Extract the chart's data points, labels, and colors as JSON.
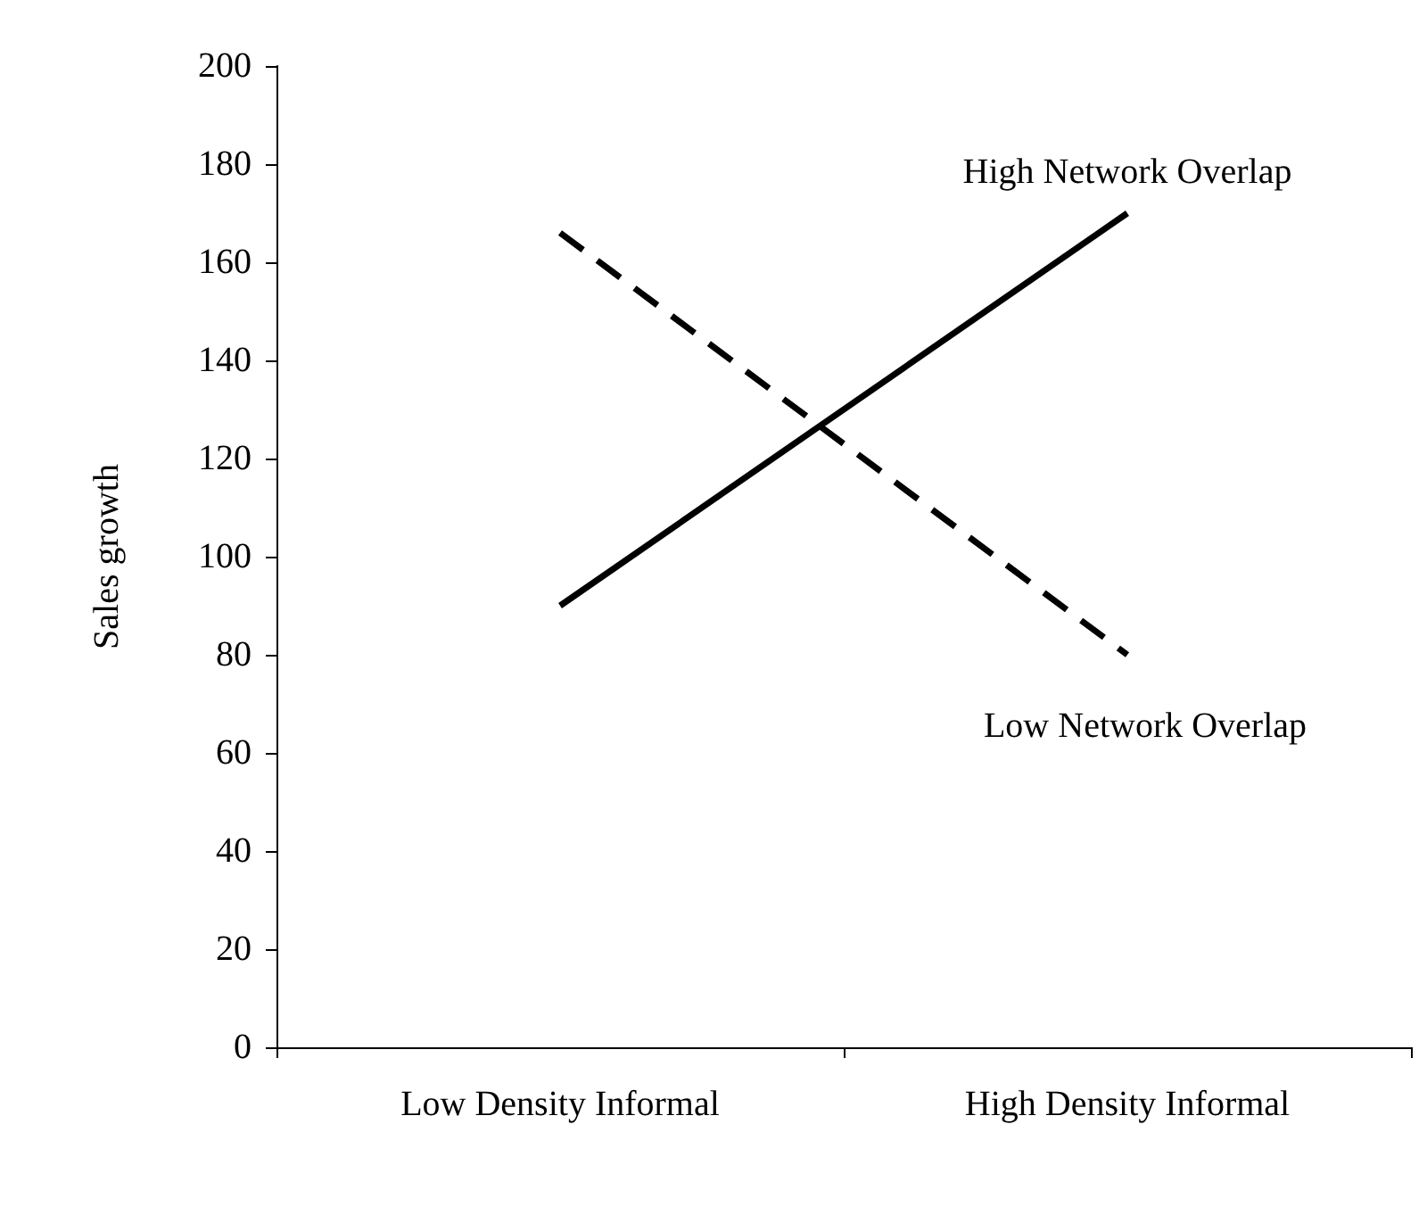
{
  "chart_data": {
    "type": "line",
    "ylabel": "Sales growth",
    "categories": [
      "Low Density Informal",
      "High Density Informal"
    ],
    "series": [
      {
        "name": "High Network Overlap",
        "color": "#000000",
        "line_style": "solid",
        "values": [
          90,
          170
        ]
      },
      {
        "name": "Low Network Overlap",
        "color": "#000000",
        "line_style": "dashed",
        "values": [
          166,
          80
        ]
      }
    ],
    "ylim": [
      0,
      200
    ],
    "yticks": [
      0,
      20,
      40,
      60,
      80,
      100,
      120,
      140,
      160,
      180,
      200
    ],
    "grid": false,
    "legend": false,
    "marker": "none"
  }
}
